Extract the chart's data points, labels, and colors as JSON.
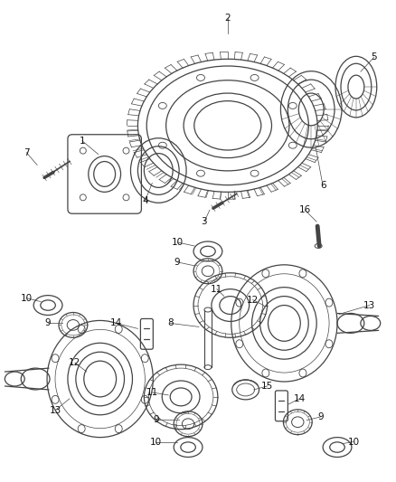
{
  "bg_color": "#ffffff",
  "line_color": "#444444",
  "label_color": "#111111",
  "label_fontsize": 7.5,
  "fig_width": 4.38,
  "fig_height": 5.33
}
